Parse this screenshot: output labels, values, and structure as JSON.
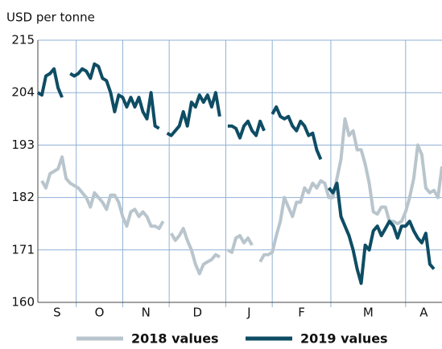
{
  "chart_data": {
    "type": "line",
    "y_label": "USD per tonne",
    "categories": [
      "S",
      "O",
      "N",
      "D",
      "J",
      "F",
      "M",
      "A"
    ],
    "xlim": [
      0,
      100
    ],
    "xticks": [
      9.5,
      21,
      32.5,
      46.5,
      58,
      72.5,
      91
    ],
    "ylim": [
      160,
      215
    ],
    "yticks": [
      160,
      171,
      182,
      193,
      204,
      215
    ],
    "grid": true,
    "legend": "bottom",
    "x": [
      0,
      1,
      2,
      3,
      4,
      5,
      6,
      7,
      8,
      9,
      10,
      11,
      12,
      13,
      14,
      15,
      16,
      17,
      18,
      19,
      20,
      21,
      22,
      23,
      24,
      25,
      26,
      27,
      28,
      29,
      30,
      31,
      32,
      33,
      34,
      35,
      36,
      37,
      38,
      39,
      40,
      41,
      42,
      43,
      44,
      45,
      46,
      47,
      48,
      49,
      50,
      51,
      52,
      53,
      54,
      55,
      56,
      57,
      58,
      59,
      60,
      61,
      62,
      63,
      64,
      65,
      66,
      67,
      68,
      69,
      70,
      71,
      72,
      73,
      74,
      75,
      76,
      77,
      78,
      79,
      80,
      81,
      82,
      83,
      84,
      85,
      86,
      87,
      88,
      89,
      90,
      91,
      92,
      93,
      94,
      95,
      96,
      97,
      98,
      99,
      100
    ],
    "series": [
      {
        "name": "2018 values",
        "color": "#b9c5cd",
        "values": [
          null,
          185.5,
          184,
          187,
          187.5,
          188,
          190.5,
          186,
          185,
          184.5,
          184,
          183,
          182,
          180,
          183,
          182,
          181,
          179.5,
          182.5,
          182.5,
          181,
          178,
          176,
          179,
          179.5,
          178,
          179,
          178,
          176,
          176,
          175.5,
          177,
          null,
          174.5,
          173,
          174,
          175.5,
          173,
          171,
          168,
          166,
          168,
          168.5,
          169,
          170,
          169.5,
          null,
          171,
          170.5,
          173.5,
          174,
          172.5,
          173.5,
          172,
          null,
          168.5,
          170,
          170,
          170.5,
          174,
          177,
          182,
          180,
          178,
          181,
          181,
          184,
          183,
          185,
          184,
          185.5,
          185,
          182,
          182,
          186,
          190,
          198.5,
          195,
          196,
          192,
          192,
          189,
          185,
          179,
          178.5,
          180,
          180,
          177,
          177,
          176.5,
          177,
          179,
          182,
          186,
          193,
          191,
          184,
          183,
          183.5,
          182,
          188.5
        ]
      },
      {
        "name": "2019 values",
        "color": "#0e4d64",
        "values": [
          204,
          203.5,
          207.5,
          208,
          209,
          205,
          203,
          null,
          208,
          207.5,
          208,
          209,
          208.5,
          207,
          210,
          209.5,
          207,
          206.5,
          204,
          200,
          203.5,
          203,
          201,
          203,
          201,
          203,
          200,
          198.5,
          204,
          197,
          196.5,
          null,
          195.5,
          195,
          196,
          197,
          200,
          197,
          202,
          201,
          203.5,
          202,
          203.5,
          201,
          204,
          199,
          null,
          197,
          197,
          196.5,
          194.5,
          197,
          198,
          196,
          195,
          198,
          196,
          null,
          199.5,
          201,
          199,
          198.5,
          199,
          197,
          196,
          198,
          197,
          195,
          195.5,
          192,
          190,
          null,
          184,
          183,
          185,
          178,
          176,
          174,
          171,
          167,
          164,
          172,
          171,
          175,
          176,
          174,
          175.5,
          177,
          176,
          173.5,
          176,
          176,
          177,
          175,
          173.5,
          172.5,
          174.5,
          168,
          167,
          null,
          165
        ]
      }
    ]
  }
}
